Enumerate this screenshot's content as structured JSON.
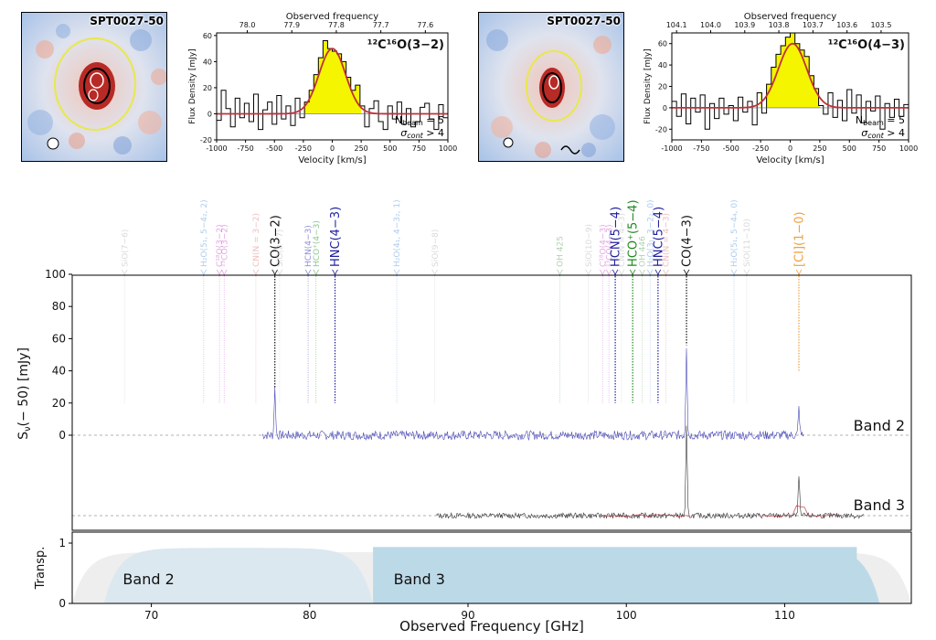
{
  "thumbnails": [
    {
      "label": "SPT0027-50"
    },
    {
      "label": "SPT0027-50"
    }
  ],
  "chart_data": [
    {
      "type": "line",
      "title": "",
      "line_label": "¹²C¹⁶O(3−2)",
      "xlabel": "Velocity [km/s]",
      "ylabel": "Flux Density [mJy]",
      "top_axis_label": "Observed frequency",
      "xlim": [
        -1000,
        1000
      ],
      "ylim": [
        -20,
        62
      ],
      "xticks": [
        -1000,
        -750,
        -500,
        -250,
        0,
        250,
        500,
        750,
        1000
      ],
      "yticks": [
        -20,
        0,
        20,
        40,
        60
      ],
      "top_ticks": [
        {
          "label": "78.0",
          "v": -735
        },
        {
          "label": "77.9",
          "v": -350
        },
        {
          "label": "77.8",
          "v": 35
        },
        {
          "label": "77.7",
          "v": 420
        },
        {
          "label": "77.6",
          "v": 805
        }
      ],
      "nbeam_text": "N",
      "nbeam_sub": "beam",
      "nbeam_value": "= 5",
      "sigma_text": "σ",
      "sigma_sub": "cont",
      "sigma_value": "> 4",
      "gaussian": {
        "amp": 50,
        "center": 0,
        "sigma": 115
      },
      "line_window": [
        -250,
        250
      ],
      "step_x": [
        -1000,
        -960,
        -920,
        -880,
        -840,
        -800,
        -760,
        -720,
        -680,
        -640,
        -600,
        -560,
        -520,
        -480,
        -440,
        -400,
        -360,
        -320,
        -280,
        -240,
        -200,
        -160,
        -120,
        -80,
        -40,
        0,
        40,
        80,
        120,
        160,
        200,
        240,
        280,
        320,
        360,
        400,
        440,
        480,
        520,
        560,
        600,
        640,
        680,
        720,
        760,
        800,
        840,
        880,
        920,
        960,
        1000
      ],
      "step_y": [
        -5,
        18,
        4,
        -10,
        12,
        -3,
        8,
        -6,
        15,
        -12,
        3,
        9,
        -8,
        14,
        -4,
        6,
        -9,
        12,
        -3,
        9,
        18,
        30,
        43,
        56,
        50,
        48,
        46,
        40,
        28,
        18,
        22,
        6,
        -10,
        4,
        10,
        -6,
        -12,
        6,
        -4,
        9,
        -8,
        4,
        -10,
        -6,
        5,
        8,
        -4,
        -12,
        7,
        -3,
        -5
      ]
    },
    {
      "type": "line",
      "title": "",
      "line_label": "¹²C¹⁶O(4−3)",
      "xlabel": "Velocity [km/s]",
      "ylabel": "Flux Density [mJy]",
      "top_axis_label": "Observed frequency",
      "xlim": [
        -1000,
        1000
      ],
      "ylim": [
        -30,
        70
      ],
      "xticks": [
        -1000,
        -750,
        -500,
        -250,
        0,
        250,
        500,
        750,
        1000
      ],
      "yticks": [
        -20,
        0,
        20,
        40,
        60
      ],
      "top_ticks": [
        {
          "label": "104.1",
          "v": -960
        },
        {
          "label": "104.0",
          "v": -672
        },
        {
          "label": "103.9",
          "v": -384
        },
        {
          "label": "103.8",
          "v": -96
        },
        {
          "label": "103.7",
          "v": 192
        },
        {
          "label": "103.6",
          "v": 480
        },
        {
          "label": "103.5",
          "v": 768
        }
      ],
      "nbeam_text": "N",
      "nbeam_sub": "beam",
      "nbeam_value": "= 5",
      "sigma_text": "σ",
      "sigma_sub": "cont",
      "sigma_value": "> 4",
      "gaussian": {
        "amp": 60,
        "center": 20,
        "sigma": 120
      },
      "line_window": [
        -250,
        250
      ],
      "step_x": [
        -1000,
        -960,
        -920,
        -880,
        -840,
        -800,
        -760,
        -720,
        -680,
        -640,
        -600,
        -560,
        -520,
        -480,
        -440,
        -400,
        -360,
        -320,
        -280,
        -240,
        -200,
        -160,
        -120,
        -80,
        -40,
        0,
        40,
        80,
        120,
        160,
        200,
        240,
        280,
        320,
        360,
        400,
        440,
        480,
        520,
        560,
        600,
        640,
        680,
        720,
        760,
        800,
        840,
        880,
        920,
        960,
        1000
      ],
      "step_y": [
        6,
        -8,
        13,
        -15,
        9,
        -4,
        12,
        -20,
        4,
        -10,
        9,
        -6,
        2,
        -12,
        10,
        -4,
        6,
        -16,
        14,
        -5,
        22,
        38,
        50,
        58,
        66,
        70,
        60,
        54,
        48,
        30,
        18,
        2,
        -6,
        14,
        -9,
        7,
        -12,
        17,
        -5,
        12,
        -14,
        6,
        -3,
        11,
        -20,
        4,
        -9,
        8,
        -8,
        3,
        -5
      ]
    },
    {
      "type": "line",
      "title": "",
      "xlabel": "Observed Frequency [GHz]",
      "ylabel": "S",
      "ylabel_sub": "ν",
      "ylabel_rest": "(− 50) [mJy]",
      "xlim": [
        65,
        118
      ],
      "ylim": [
        -10,
        100
      ],
      "xticks": [
        70,
        80,
        90,
        100,
        110
      ],
      "yticks": [
        0,
        20,
        40,
        60,
        80,
        100
      ],
      "series": [
        {
          "name": "Band 2",
          "range": [
            77.0,
            111.2
          ],
          "peaks": [
            {
              "x": 77.8,
              "y": 29
            },
            {
              "x": 103.8,
              "y": 56
            },
            {
              "x": 110.9,
              "y": 17
            }
          ],
          "color": "#4848b8"
        },
        {
          "name": "Band 3",
          "range": [
            88.0,
            115.0
          ],
          "peaks": [
            {
              "x": 103.8,
              "y": 55
            },
            {
              "x": 110.9,
              "y": 26
            }
          ],
          "color": "#333333"
        }
      ],
      "lines": [
        {
          "label": "SiO(7−6)",
          "freq": 68.3,
          "color": "#b9b9b9",
          "alpha": 0.55,
          "big": false,
          "ymax": 20
        },
        {
          "label": "H₂O(5₁, 5−4₂, 2)",
          "freq": 73.3,
          "color": "#7fb0e6",
          "alpha": 0.65,
          "big": false,
          "ymax": 20
        },
        {
          "label": "C¹⁸O(3−2)",
          "freq": 74.3,
          "color": "#d77fd7",
          "alpha": 0.7,
          "big": false,
          "ymax": 20
        },
        {
          "label": "¹³CO(3−2)",
          "freq": 74.6,
          "color": "#d77fd7",
          "alpha": 0.7,
          "big": false,
          "ymax": 20
        },
        {
          "label": "CN(N = 3−2)",
          "freq": 76.6,
          "color": "#e79a9a",
          "alpha": 0.65,
          "big": false,
          "ymax": 20
        },
        {
          "label": "CO(3−2)",
          "freq": 77.8,
          "color": "#111111",
          "alpha": 1,
          "big": true,
          "ymax": 29
        },
        {
          "label": "SiO(8−7)",
          "freq": 78.1,
          "color": "#b9b9b9",
          "alpha": 0.55,
          "big": false,
          "ymax": 20
        },
        {
          "label": "HCN(4−3)",
          "freq": 79.9,
          "color": "#5c5cc8",
          "alpha": 0.7,
          "big": false,
          "ymax": 20
        },
        {
          "label": "HCO⁺(4−3)",
          "freq": 80.4,
          "color": "#5cae5c",
          "alpha": 0.7,
          "big": false,
          "ymax": 20
        },
        {
          "label": "HNC(4−3)",
          "freq": 81.6,
          "color": "#1e1e9e",
          "alpha": 1,
          "big": true,
          "ymax": 20
        },
        {
          "label": "H₂O(4₁, 4−3₂, 1)",
          "freq": 85.5,
          "color": "#7fb0e6",
          "alpha": 0.65,
          "big": false,
          "ymax": 20
        },
        {
          "label": "SiO(9−8)",
          "freq": 87.9,
          "color": "#b9b9b9",
          "alpha": 0.55,
          "big": false,
          "ymax": 20
        },
        {
          "label": "OH 425",
          "freq": 95.8,
          "color": "#8fbf8f",
          "alpha": 0.7,
          "big": false,
          "ymax": 20
        },
        {
          "label": "SiO(10−9)",
          "freq": 97.6,
          "color": "#b9b9b9",
          "alpha": 0.55,
          "big": false,
          "ymax": 20
        },
        {
          "label": "C¹⁸O(4−3)",
          "freq": 98.5,
          "color": "#d77fd7",
          "alpha": 0.7,
          "big": false,
          "ymax": 20
        },
        {
          "label": "¹³CO(4−3)",
          "freq": 98.9,
          "color": "#d77fd7",
          "alpha": 0.7,
          "big": false,
          "ymax": 20
        },
        {
          "label": "HCN(5−4)",
          "freq": 99.3,
          "color": "#1e1e9e",
          "alpha": 1,
          "big": true,
          "ymax": 20
        },
        {
          "label": "CN(N = 4−3)",
          "freq": 99.7,
          "color": "#b9b9b9",
          "alpha": 0.55,
          "big": false,
          "ymax": 20
        },
        {
          "label": "HCO⁺(5−4)",
          "freq": 100.4,
          "color": "#1f8a1f",
          "alpha": 1,
          "big": true,
          "ymax": 20
        },
        {
          "label": "OH 446",
          "freq": 101.0,
          "color": "#8fbf8f",
          "alpha": 0.7,
          "big": false,
          "ymax": 20
        },
        {
          "label": "H₂O(3₁, 3−2₂, 0)",
          "freq": 101.5,
          "color": "#7fb0e6",
          "alpha": 0.65,
          "big": false,
          "ymax": 20
        },
        {
          "label": "HNC(5−4)",
          "freq": 102.0,
          "color": "#1e1e9e",
          "alpha": 1,
          "big": true,
          "ymax": 20
        },
        {
          "label": "CN(N = 4−3)",
          "freq": 102.5,
          "color": "#e79a9a",
          "alpha": 0.65,
          "big": false,
          "ymax": 20
        },
        {
          "label": "CO(4−3)",
          "freq": 103.8,
          "color": "#111111",
          "alpha": 1,
          "big": true,
          "ymax": 56
        },
        {
          "label": "H₂O(5₁, 5−4₄, 0)",
          "freq": 106.8,
          "color": "#7fb0e6",
          "alpha": 0.65,
          "big": false,
          "ymax": 20
        },
        {
          "label": "SiO(11−10)",
          "freq": 107.6,
          "color": "#b9b9b9",
          "alpha": 0.55,
          "big": false,
          "ymax": 20
        },
        {
          "label": "[CI](1−0)",
          "freq": 110.9,
          "color": "#f0a040",
          "alpha": 1,
          "big": true,
          "ymax": 40
        }
      ]
    },
    {
      "type": "area",
      "title": "",
      "ylabel": "Transp.",
      "xlim": [
        65,
        118
      ],
      "ylim": [
        0,
        1
      ],
      "yticks": [
        0,
        1
      ],
      "bands": [
        {
          "name": "Band 2",
          "range": [
            67.0,
            84.0
          ],
          "color": "#dbe8f0"
        },
        {
          "name": "Band 3",
          "range": [
            84.0,
            116.0
          ],
          "color": "#bcd9e7"
        }
      ]
    }
  ],
  "colors": {
    "gaussian": "#c0303c",
    "fill": "#f5f500",
    "spectrum_band2": "#4848b8",
    "spectrum_band3": "#333333",
    "baseline": "#999999"
  }
}
